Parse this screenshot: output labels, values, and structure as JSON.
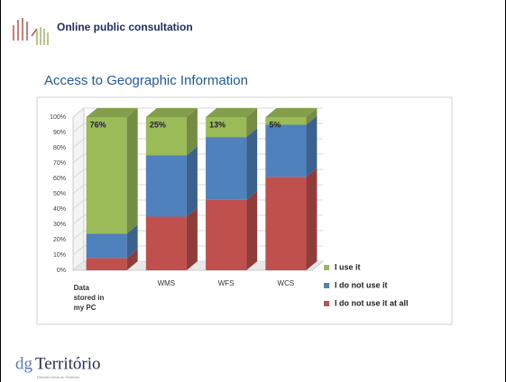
{
  "header": {
    "title": "Online public consultation"
  },
  "chart_data": {
    "type": "bar3d_stacked",
    "title": "Access to Geographic Information",
    "categories": [
      "Data stored in my PC",
      "WMS",
      "WFS",
      "WCS"
    ],
    "series": [
      {
        "name": "I do not use it at all",
        "color": "#c0504d",
        "values": [
          8,
          35,
          46,
          61
        ]
      },
      {
        "name": "I do not use it",
        "color": "#4f81bd",
        "values": [
          16,
          40,
          41,
          34
        ]
      },
      {
        "name": "I use it",
        "color": "#9bbb59",
        "values": [
          76,
          25,
          13,
          5
        ],
        "value_labels": [
          "76%",
          "25%",
          "13%",
          "5%"
        ]
      }
    ],
    "ylim": [
      0,
      100
    ],
    "yticks": [
      {
        "value": 0,
        "label": "0%"
      },
      {
        "value": 10,
        "label": "10%"
      },
      {
        "value": 20,
        "label": "20%"
      },
      {
        "value": 30,
        "label": "30%"
      },
      {
        "value": 40,
        "label": "40%"
      },
      {
        "value": 50,
        "label": "50%"
      },
      {
        "value": 60,
        "label": "60%"
      },
      {
        "value": 70,
        "label": "70%"
      },
      {
        "value": 80,
        "label": "80%"
      },
      {
        "value": 90,
        "label": "90%"
      },
      {
        "value": 100,
        "label": "100%"
      }
    ],
    "grid": true,
    "legend": "right"
  },
  "footer": {
    "logo_prefix": "dg",
    "logo": "Território",
    "tagline": "Direção-Geral do Território"
  }
}
